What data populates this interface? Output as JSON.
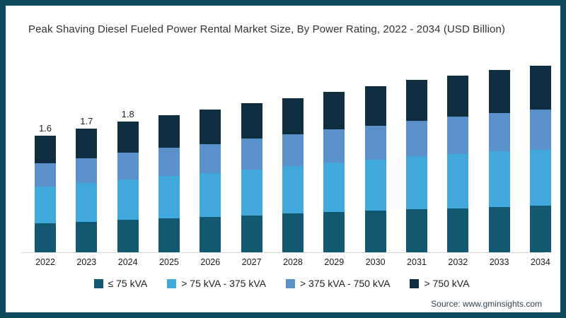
{
  "title": "Peak Shaving Diesel Fueled Power Rental Market Size, By Power Rating, 2022 - 2034 (USD Billion)",
  "source": "Source: www.gminsights.com",
  "colors": {
    "frame_border": "#0d4a5e",
    "axis_line": "#d9d9d9",
    "title_text": "#333333",
    "tick_text": "#1a1a1a",
    "source_text": "#33424d"
  },
  "chart_data": {
    "type": "bar",
    "stacked": true,
    "title": "Peak Shaving Diesel Fueled Power Rental Market Size, By Power Rating, 2022 - 2034 (USD Billion)",
    "xlabel": "",
    "ylabel": "USD Billion",
    "grid": false,
    "legend_position": "bottom",
    "categories": [
      "2022",
      "2023",
      "2024",
      "2025",
      "2026",
      "2027",
      "2028",
      "2029",
      "2030",
      "2031",
      "2032",
      "2033",
      "2034"
    ],
    "series": [
      {
        "name": "≤ 75 kVA",
        "color": "#115870",
        "values": [
          0.4,
          0.42,
          0.45,
          0.47,
          0.49,
          0.51,
          0.53,
          0.55,
          0.57,
          0.59,
          0.6,
          0.62,
          0.64
        ]
      },
      {
        "name": "> 75 kVA - 375 kVA",
        "color": "#41a8dc",
        "values": [
          0.5,
          0.53,
          0.55,
          0.58,
          0.6,
          0.63,
          0.65,
          0.68,
          0.7,
          0.73,
          0.75,
          0.77,
          0.77
        ]
      },
      {
        "name": "> 375 kVA - 750 kVA",
        "color": "#5a91cb",
        "values": [
          0.32,
          0.34,
          0.37,
          0.39,
          0.4,
          0.42,
          0.44,
          0.46,
          0.47,
          0.49,
          0.51,
          0.52,
          0.55
        ]
      },
      {
        "name": "> 750 kVA",
        "color": "#0f2e3f",
        "values": [
          0.38,
          0.41,
          0.43,
          0.44,
          0.47,
          0.49,
          0.5,
          0.51,
          0.54,
          0.56,
          0.57,
          0.59,
          0.6
        ]
      }
    ],
    "totals": [
      1.6,
      1.7,
      1.8,
      1.88,
      1.96,
      2.05,
      2.12,
      2.2,
      2.28,
      2.37,
      2.43,
      2.5,
      2.56
    ],
    "bar_labels": [
      "1.6",
      "1.7",
      "1.8",
      "",
      "",
      "",
      "",
      "",
      "",
      "",
      "",
      "",
      ""
    ]
  }
}
